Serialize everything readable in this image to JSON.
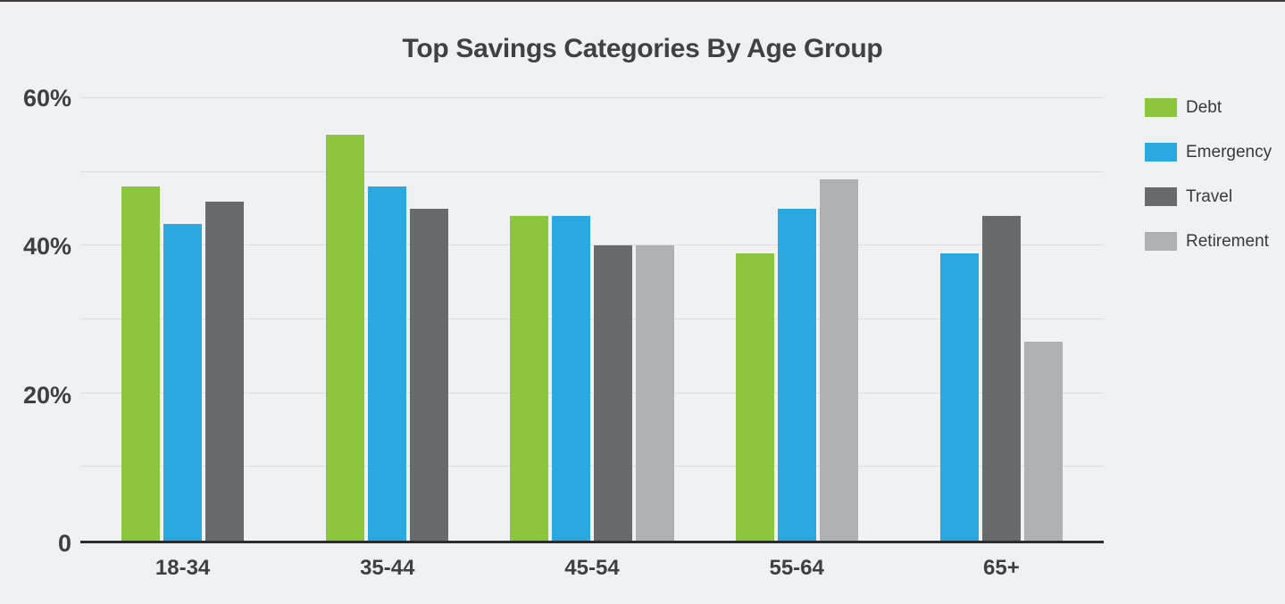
{
  "page": {
    "background_color": "#F0F1F3",
    "top_edge_line_color": "#443c3c"
  },
  "chart_data": {
    "type": "bar",
    "title": "Top Savings Categories By Age Group",
    "categories": [
      "18-34",
      "35-44",
      "45-54",
      "55-64",
      "65+"
    ],
    "series": [
      {
        "name": "Debt",
        "color": "#8CC63F",
        "values": [
          48,
          55,
          44,
          39,
          null
        ]
      },
      {
        "name": "Emergency",
        "color": "#29A9E0",
        "values": [
          43,
          48,
          44,
          45,
          39
        ]
      },
      {
        "name": "Travel",
        "color": "#696A6D",
        "values": [
          46,
          45,
          40,
          null,
          44
        ]
      },
      {
        "name": "Retirement",
        "color": "#AEB0B3",
        "values": [
          null,
          null,
          40,
          49,
          27
        ]
      }
    ],
    "y_axis": {
      "unit": "%",
      "min": 0,
      "max": 60,
      "gridline_step": 10,
      "tick_values": [
        0,
        20,
        40,
        60
      ],
      "tick_labels": [
        "0",
        "20%",
        "40%",
        "60%"
      ]
    },
    "xlabel": "",
    "ylabel": "",
    "grid": true,
    "legend_position": "right",
    "colors": {
      "gridline": "#DBDDE0",
      "axis_line": "#2B2D2E",
      "text": "#3D3F42"
    }
  }
}
